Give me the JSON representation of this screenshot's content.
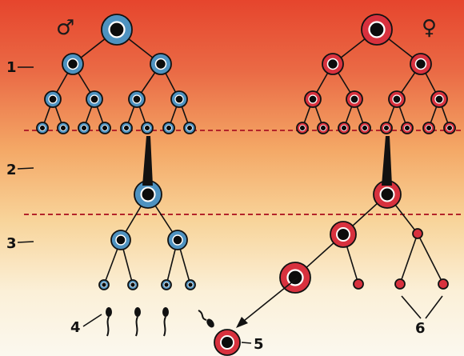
{
  "symbols": {
    "male": "♂",
    "female": "♀"
  },
  "labels": {
    "l1": "1",
    "l2": "2",
    "l3": "3",
    "l4": "4",
    "l5": "5",
    "l6": "6"
  },
  "colors": {
    "male_cell": "#4e92c0",
    "female_cell": "#d8313e",
    "nucleus": "#0c0c0c",
    "background_top": "#e84a2f",
    "background_mid": "#f7c07a",
    "background_bottom": "#fbf6e8"
  }
}
